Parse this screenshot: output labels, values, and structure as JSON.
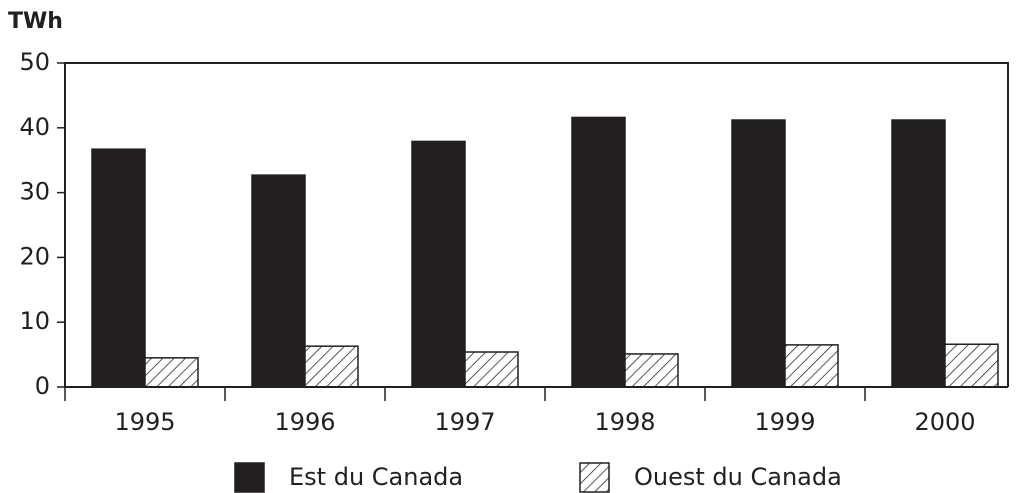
{
  "chart_data": {
    "type": "bar",
    "y_label": "TWh",
    "categories": [
      "1995",
      "1996",
      "1997",
      "1998",
      "1999",
      "2000"
    ],
    "series": [
      {
        "name": "Est du Canada",
        "color": "#231f20",
        "pattern": "solid",
        "values": [
          36.7,
          32.7,
          37.9,
          41.6,
          41.2,
          41.2
        ]
      },
      {
        "name": "Ouest du Canada",
        "color": "#231f20",
        "pattern": "hatch",
        "values": [
          4.5,
          6.3,
          5.4,
          5.1,
          6.5,
          6.6
        ]
      }
    ],
    "ylim": [
      0,
      50
    ],
    "yticks": [
      0,
      10,
      20,
      30,
      40,
      50
    ],
    "grid": false,
    "legend": "bottom"
  }
}
